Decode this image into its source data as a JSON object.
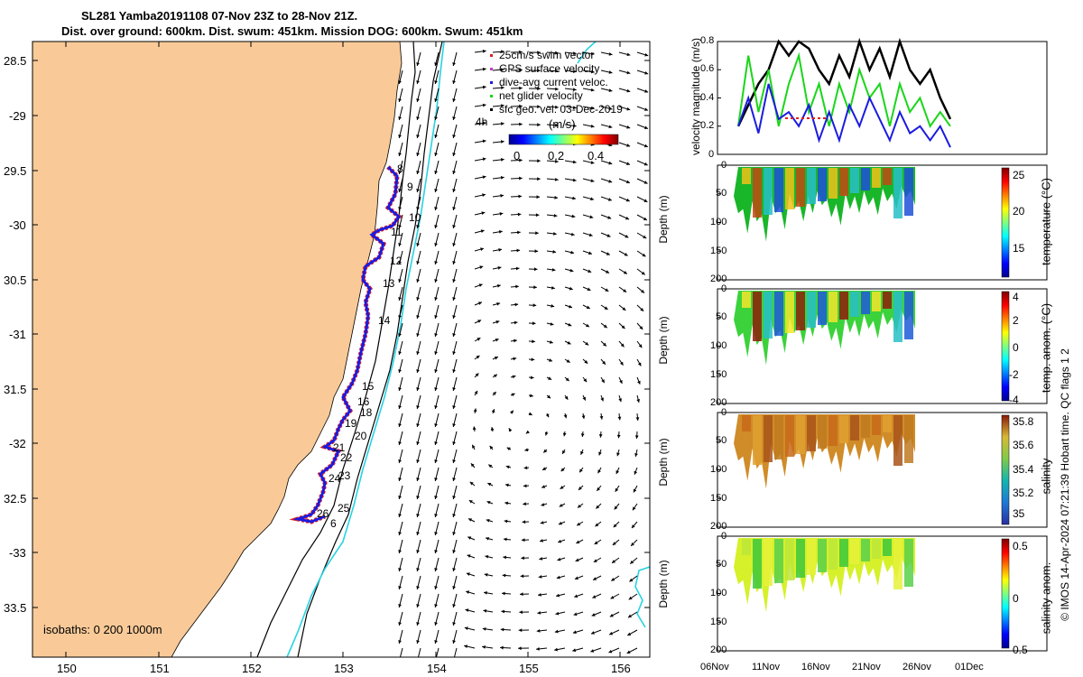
{
  "title_line1": "SL281 Yamba20191108 07-Nov 23Z to 28-Nov 21Z.",
  "title_line2": "Dist. over ground: 600km. Dist. swum: 451km. Mission DOG: 600km. Swum: 451km",
  "colors": {
    "land": "#F9CA98",
    "isobath": "#27D3E3",
    "track_red": "#E0201B",
    "track_blue": "#1B1BE0",
    "green": "#19D619"
  },
  "map": {
    "lon_ticks": [
      "150",
      "151",
      "152",
      "153",
      "154",
      "155",
      "156"
    ],
    "lat_ticks": [
      "28.5",
      "-29",
      "29.5",
      "-30",
      "30.5",
      "-31",
      "31.5",
      "-32",
      "32.5",
      "-33",
      "33.5"
    ],
    "legend": [
      "25cm/s swim vector",
      "GPS surface velocity",
      "dive-avg current veloc.",
      "net glider velocity",
      "sfc geo. vel. 03-Dec-2019"
    ],
    "legend_extra": "4h",
    "colorbar_label": "(m/s)",
    "colorbar_ticks": [
      "0",
      "0.2",
      "0.4"
    ],
    "isobaths_label": "isobaths: 0   200  1000m",
    "day_labels": [
      "8",
      "9",
      "10",
      "11",
      "12",
      "13",
      "14",
      "15",
      "16",
      "18",
      "19",
      "20",
      "21",
      "22",
      "23",
      "24",
      "25",
      "26",
      "6"
    ]
  },
  "footer": "© IMOS 14-Apr-2024 07:21:39 Hobart time. QC flags 1  2",
  "chart_data": [
    {
      "type": "line",
      "title": "velocity",
      "ylabel": "velocity magnitude (m/s)",
      "ylim": [
        0,
        0.8
      ],
      "yticks": [
        "0",
        "0.2",
        "0.4",
        "0.6",
        "0.8"
      ],
      "x_days": [
        0,
        1,
        2,
        3,
        4,
        5,
        6,
        7,
        8,
        9,
        10,
        11,
        12,
        13,
        14,
        15,
        16,
        17,
        18,
        19,
        20,
        21
      ],
      "series": [
        {
          "name": "sfc geo. vel.",
          "color": "#000000",
          "values": [
            0.2,
            0.35,
            0.5,
            0.6,
            0.8,
            0.7,
            0.8,
            0.75,
            0.6,
            0.5,
            0.7,
            0.55,
            0.8,
            0.6,
            0.75,
            0.55,
            0.8,
            0.6,
            0.5,
            0.6,
            0.4,
            0.25
          ]
        },
        {
          "name": "net glider velocity",
          "color": "#19D619",
          "values": [
            0.2,
            0.7,
            0.3,
            0.6,
            0.2,
            0.5,
            0.7,
            0.3,
            0.5,
            0.2,
            0.5,
            0.3,
            0.6,
            0.4,
            0.5,
            0.2,
            0.5,
            0.3,
            0.4,
            0.2,
            0.3,
            0.2
          ]
        },
        {
          "name": "dive-avg current veloc.",
          "color": "#1B1BE0",
          "values": [
            0.2,
            0.4,
            0.15,
            0.5,
            0.25,
            0.3,
            0.2,
            0.35,
            0.1,
            0.3,
            0.1,
            0.35,
            0.2,
            0.4,
            0.25,
            0.1,
            0.3,
            0.15,
            0.2,
            0.1,
            0.2,
            0.05
          ]
        }
      ]
    },
    {
      "type": "heatmap",
      "ylabel": "Depth (m)",
      "yticks": [
        "0",
        "50",
        "100",
        "150",
        "200"
      ],
      "colorbar_label": "temperature (°C)",
      "colorbar_ticks": [
        "25",
        "20",
        "15"
      ],
      "clim": [
        11,
        26
      ]
    },
    {
      "type": "heatmap",
      "ylabel": "Depth (m)",
      "yticks": [
        "0",
        "50",
        "100",
        "150",
        "200"
      ],
      "colorbar_label": "temp. anom. (°C)",
      "colorbar_ticks": [
        "4",
        "2",
        "0",
        "-2",
        "-4"
      ],
      "clim": [
        -4,
        4
      ]
    },
    {
      "type": "heatmap",
      "ylabel": "Depth (m)",
      "yticks": [
        "0",
        "50",
        "100",
        "150",
        "200"
      ],
      "colorbar_label": "salinity",
      "colorbar_ticks": [
        "35.8",
        "35.6",
        "35.4",
        "35.2",
        "35"
      ],
      "clim": [
        34.9,
        35.85
      ]
    },
    {
      "type": "heatmap",
      "ylabel": "Depth (m)",
      "yticks": [
        "0",
        "50",
        "100",
        "150",
        "200"
      ],
      "colorbar_label": "salinity anom.",
      "colorbar_ticks": [
        "0.5",
        "0",
        "-0.5"
      ],
      "clim": [
        -0.5,
        0.5
      ]
    }
  ],
  "time_axis": [
    "06Nov",
    "11Nov",
    "16Nov",
    "21Nov",
    "26Nov",
    "01Dec"
  ]
}
